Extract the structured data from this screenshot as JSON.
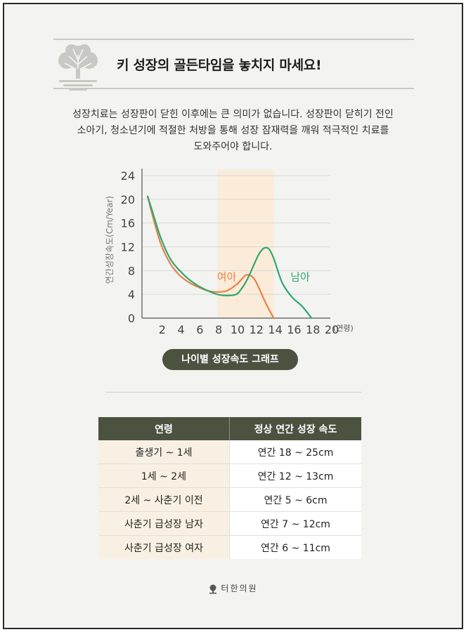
{
  "header": {
    "title": "키 성장의 골든타임을 놓치지 마세요!"
  },
  "intro": {
    "lines": [
      "성장치료는 성장판이 닫힌 이후에는 큰 의미가 없습니다. 성장판이 닫히기 전인",
      "소아기, 청소년기에 적절한 처방을 통해 성장 잠재력을 깨워 적극적인 치료를",
      "도와주어야 합니다."
    ]
  },
  "chart_data": {
    "type": "line",
    "title": "나이별 성장속도 그래프",
    "xlabel": "(연령)",
    "ylabel": "연간성장속도(Cm/Year)",
    "xlim": [
      0,
      20
    ],
    "ylim": [
      0,
      24
    ],
    "x_ticks": [
      2,
      4,
      6,
      8,
      10,
      12,
      14,
      16,
      18,
      20
    ],
    "y_ticks": [
      0,
      4,
      8,
      12,
      16,
      20,
      24
    ],
    "grid": true,
    "highlight_range": [
      8,
      14
    ],
    "series": [
      {
        "name": "여아",
        "color": "#e8804a",
        "x": [
          0.6,
          1,
          2,
          3,
          4,
          5,
          6,
          7,
          8,
          9,
          10,
          10.5,
          11,
          11.5,
          12,
          12.5,
          13,
          13.5,
          14
        ],
        "y": [
          20.5,
          18,
          12.5,
          9.2,
          7.2,
          6,
          5.2,
          4.6,
          4.4,
          4.6,
          5.6,
          6.4,
          7.2,
          7.2,
          6.4,
          4.8,
          3,
          1.4,
          0
        ]
      },
      {
        "name": "남아",
        "color": "#2ea86b",
        "x": [
          0.6,
          1,
          2,
          3,
          4,
          5,
          6,
          7,
          8,
          9,
          10,
          10.5,
          11,
          11.5,
          12,
          12.5,
          13,
          13.5,
          14,
          14.5,
          15,
          16,
          17,
          18
        ],
        "y": [
          20.5,
          18.5,
          13.5,
          10,
          8,
          6.5,
          5.4,
          4.6,
          4,
          3.8,
          4,
          4.8,
          6,
          7.6,
          9.4,
          11,
          11.8,
          11.6,
          10,
          7.6,
          5.6,
          3.4,
          2,
          0
        ]
      }
    ],
    "bg_color": "#fbecd9"
  },
  "table": {
    "headers": [
      "연령",
      "정상 연간 성장 속도"
    ],
    "rows": [
      [
        "출생기 ~ 1세",
        "연간 18 ~ 25cm"
      ],
      [
        "1세 ~ 2세",
        "연간 12 ~ 13cm"
      ],
      [
        "2세 ~ 사춘기 이전",
        "연간 5 ~ 6cm"
      ],
      [
        "사춘기 급성장 남자",
        "연간 7 ~ 12cm"
      ],
      [
        "사춘기 급성장 여자",
        "연간 6 ~ 11cm"
      ]
    ]
  },
  "footer": {
    "brand": "터한의원"
  }
}
